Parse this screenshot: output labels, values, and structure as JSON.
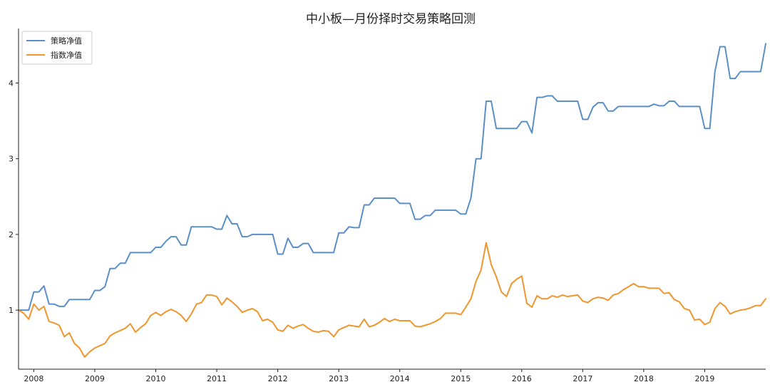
{
  "chart_data": {
    "type": "line",
    "title": "中小板—月份择时交易策略回测",
    "xlabel": "",
    "ylabel": "",
    "xlim": [
      2007.75,
      2020.0
    ],
    "ylim": [
      0.22,
      4.72
    ],
    "x_ticks": [
      2008,
      2009,
      2010,
      2011,
      2012,
      2013,
      2014,
      2015,
      2016,
      2017,
      2018,
      2019
    ],
    "x_tick_labels": [
      "2008",
      "2009",
      "2010",
      "2011",
      "2012",
      "2013",
      "2014",
      "2015",
      "2016",
      "2017",
      "2018",
      "2019"
    ],
    "y_ticks": [
      1,
      2,
      3,
      4
    ],
    "y_tick_labels": [
      "1",
      "2",
      "3",
      "4"
    ],
    "grid": false,
    "legend_position": "top-left",
    "series": [
      {
        "name": "策略净值",
        "color": "#5b8fc7",
        "x": [
          2007.75,
          2007.833,
          2007.917,
          2008.0,
          2008.083,
          2008.167,
          2008.25,
          2008.333,
          2008.417,
          2008.5,
          2008.583,
          2008.667,
          2008.75,
          2008.833,
          2008.917,
          2009.0,
          2009.083,
          2009.167,
          2009.25,
          2009.333,
          2009.417,
          2009.5,
          2009.583,
          2009.667,
          2009.75,
          2009.833,
          2009.917,
          2010.0,
          2010.083,
          2010.167,
          2010.25,
          2010.333,
          2010.417,
          2010.5,
          2010.583,
          2010.667,
          2010.75,
          2010.833,
          2010.917,
          2011.0,
          2011.083,
          2011.167,
          2011.25,
          2011.333,
          2011.417,
          2011.5,
          2011.583,
          2011.667,
          2011.75,
          2011.833,
          2011.917,
          2012.0,
          2012.083,
          2012.167,
          2012.25,
          2012.333,
          2012.417,
          2012.5,
          2012.583,
          2012.667,
          2012.75,
          2012.833,
          2012.917,
          2013.0,
          2013.083,
          2013.167,
          2013.25,
          2013.333,
          2013.417,
          2013.5,
          2013.583,
          2013.667,
          2013.75,
          2013.833,
          2013.917,
          2014.0,
          2014.083,
          2014.167,
          2014.25,
          2014.333,
          2014.417,
          2014.5,
          2014.583,
          2014.667,
          2014.75,
          2014.833,
          2014.917,
          2015.0,
          2015.083,
          2015.167,
          2015.25,
          2015.333,
          2015.417,
          2015.5,
          2015.583,
          2015.667,
          2015.75,
          2015.833,
          2015.917,
          2016.0,
          2016.083,
          2016.167,
          2016.25,
          2016.333,
          2016.417,
          2016.5,
          2016.583,
          2016.667,
          2016.75,
          2016.833,
          2016.917,
          2017.0,
          2017.083,
          2017.167,
          2017.25,
          2017.333,
          2017.417,
          2017.5,
          2017.583,
          2017.667,
          2017.75,
          2017.833,
          2017.917,
          2018.0,
          2018.083,
          2018.167,
          2018.25,
          2018.333,
          2018.417,
          2018.5,
          2018.583,
          2018.667,
          2018.75,
          2018.833,
          2018.917,
          2019.0,
          2019.083,
          2019.167,
          2019.25,
          2019.333,
          2019.417,
          2019.5,
          2019.583,
          2019.667,
          2019.75,
          2019.833,
          2019.917,
          2020.0
        ],
        "y": [
          1.0,
          1.0,
          1.0,
          1.24,
          1.24,
          1.32,
          1.08,
          1.08,
          1.05,
          1.05,
          1.14,
          1.14,
          1.14,
          1.14,
          1.14,
          1.26,
          1.26,
          1.31,
          1.55,
          1.55,
          1.62,
          1.62,
          1.76,
          1.76,
          1.76,
          1.76,
          1.76,
          1.83,
          1.83,
          1.91,
          1.97,
          1.97,
          1.86,
          1.86,
          2.1,
          2.1,
          2.1,
          2.1,
          2.1,
          2.07,
          2.07,
          2.25,
          2.14,
          2.14,
          1.97,
          1.97,
          2.0,
          2.0,
          2.0,
          2.0,
          2.0,
          1.74,
          1.74,
          1.95,
          1.83,
          1.83,
          1.88,
          1.88,
          1.76,
          1.76,
          1.76,
          1.76,
          1.76,
          2.02,
          2.02,
          2.1,
          2.09,
          2.09,
          2.39,
          2.39,
          2.48,
          2.48,
          2.48,
          2.48,
          2.48,
          2.41,
          2.41,
          2.41,
          2.2,
          2.2,
          2.25,
          2.25,
          2.32,
          2.32,
          2.32,
          2.32,
          2.32,
          2.27,
          2.27,
          2.48,
          3.0,
          3.0,
          3.76,
          3.76,
          3.4,
          3.4,
          3.4,
          3.4,
          3.4,
          3.49,
          3.49,
          3.34,
          3.81,
          3.81,
          3.83,
          3.83,
          3.76,
          3.76,
          3.76,
          3.76,
          3.76,
          3.52,
          3.52,
          3.68,
          3.74,
          3.74,
          3.63,
          3.63,
          3.69,
          3.69,
          3.69,
          3.69,
          3.69,
          3.69,
          3.69,
          3.72,
          3.7,
          3.7,
          3.76,
          3.76,
          3.69,
          3.69,
          3.69,
          3.69,
          3.69,
          3.4,
          3.4,
          4.15,
          4.48,
          4.48,
          4.06,
          4.06,
          4.15,
          4.15,
          4.15,
          4.15,
          4.15,
          4.52
        ]
      },
      {
        "name": "指数净值",
        "color": "#f0962e",
        "x": [
          2007.75,
          2007.833,
          2007.917,
          2008.0,
          2008.083,
          2008.167,
          2008.25,
          2008.333,
          2008.417,
          2008.5,
          2008.583,
          2008.667,
          2008.75,
          2008.833,
          2008.917,
          2009.0,
          2009.083,
          2009.167,
          2009.25,
          2009.333,
          2009.417,
          2009.5,
          2009.583,
          2009.667,
          2009.75,
          2009.833,
          2009.917,
          2010.0,
          2010.083,
          2010.167,
          2010.25,
          2010.333,
          2010.417,
          2010.5,
          2010.583,
          2010.667,
          2010.75,
          2010.833,
          2010.917,
          2011.0,
          2011.083,
          2011.167,
          2011.25,
          2011.333,
          2011.417,
          2011.5,
          2011.583,
          2011.667,
          2011.75,
          2011.833,
          2011.917,
          2012.0,
          2012.083,
          2012.167,
          2012.25,
          2012.333,
          2012.417,
          2012.5,
          2012.583,
          2012.667,
          2012.75,
          2012.833,
          2012.917,
          2013.0,
          2013.083,
          2013.167,
          2013.25,
          2013.333,
          2013.417,
          2013.5,
          2013.583,
          2013.667,
          2013.75,
          2013.833,
          2013.917,
          2014.0,
          2014.083,
          2014.167,
          2014.25,
          2014.333,
          2014.417,
          2014.5,
          2014.583,
          2014.667,
          2014.75,
          2014.833,
          2014.917,
          2015.0,
          2015.083,
          2015.167,
          2015.25,
          2015.333,
          2015.417,
          2015.5,
          2015.583,
          2015.667,
          2015.75,
          2015.833,
          2015.917,
          2016.0,
          2016.083,
          2016.167,
          2016.25,
          2016.333,
          2016.417,
          2016.5,
          2016.583,
          2016.667,
          2016.75,
          2016.833,
          2016.917,
          2017.0,
          2017.083,
          2017.167,
          2017.25,
          2017.333,
          2017.417,
          2017.5,
          2017.583,
          2017.667,
          2017.75,
          2017.833,
          2017.917,
          2018.0,
          2018.083,
          2018.167,
          2018.25,
          2018.333,
          2018.417,
          2018.5,
          2018.583,
          2018.667,
          2018.75,
          2018.833,
          2018.917,
          2019.0,
          2019.083,
          2019.167,
          2019.25,
          2019.333,
          2019.417,
          2019.5,
          2019.583,
          2019.667,
          2019.75,
          2019.833,
          2019.917,
          2020.0
        ],
        "y": [
          1.0,
          0.96,
          0.88,
          1.08,
          1.0,
          1.05,
          0.85,
          0.83,
          0.8,
          0.65,
          0.7,
          0.56,
          0.5,
          0.38,
          0.45,
          0.5,
          0.53,
          0.56,
          0.66,
          0.7,
          0.73,
          0.76,
          0.82,
          0.71,
          0.77,
          0.82,
          0.93,
          0.97,
          0.93,
          0.98,
          1.01,
          0.98,
          0.93,
          0.85,
          0.95,
          1.08,
          1.1,
          1.2,
          1.2,
          1.18,
          1.07,
          1.16,
          1.11,
          1.05,
          0.97,
          1.0,
          1.02,
          0.98,
          0.86,
          0.88,
          0.84,
          0.74,
          0.72,
          0.8,
          0.76,
          0.79,
          0.81,
          0.76,
          0.72,
          0.71,
          0.73,
          0.72,
          0.65,
          0.74,
          0.77,
          0.8,
          0.79,
          0.78,
          0.88,
          0.78,
          0.8,
          0.84,
          0.89,
          0.85,
          0.88,
          0.86,
          0.86,
          0.86,
          0.79,
          0.78,
          0.8,
          0.82,
          0.85,
          0.89,
          0.96,
          0.96,
          0.96,
          0.94,
          1.04,
          1.15,
          1.38,
          1.53,
          1.89,
          1.6,
          1.44,
          1.24,
          1.18,
          1.35,
          1.41,
          1.45,
          1.09,
          1.04,
          1.19,
          1.15,
          1.15,
          1.19,
          1.17,
          1.2,
          1.18,
          1.19,
          1.2,
          1.12,
          1.1,
          1.15,
          1.17,
          1.16,
          1.13,
          1.2,
          1.22,
          1.27,
          1.31,
          1.35,
          1.31,
          1.31,
          1.29,
          1.29,
          1.29,
          1.22,
          1.23,
          1.14,
          1.11,
          1.02,
          1.0,
          0.87,
          0.88,
          0.81,
          0.84,
          1.02,
          1.1,
          1.05,
          0.95,
          0.98,
          1.0,
          1.01,
          1.03,
          1.06,
          1.06,
          1.15
        ]
      }
    ]
  }
}
